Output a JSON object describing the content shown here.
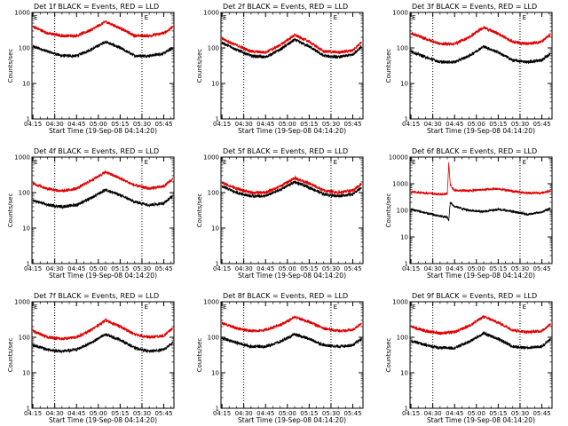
{
  "chart_data": {
    "type": "line",
    "layout": "3x3 grid",
    "y_scale": "log",
    "grid": "off",
    "xlabel": "Start Time (19-Sep-08 04:14:20)",
    "ylabel": "Counts/sec",
    "x_ticks": [
      "04:15",
      "04:30",
      "04:45",
      "05:00",
      "05:15",
      "05:30",
      "05:45"
    ],
    "x_range": [
      "04:14:20",
      "05:52:00"
    ],
    "vlines": [
      "04:30",
      "05:30"
    ],
    "marker_label": "E",
    "marker_times": [
      "04:15",
      "05:31"
    ],
    "colors": {
      "events": "#000000",
      "lld": "#e00000"
    },
    "panels": [
      {
        "title": "Det 1f BLACK = Events, RED = LLD",
        "y_ticks": [
          "1",
          "10",
          "100",
          "1000"
        ],
        "ylim": [
          1,
          1000
        ],
        "series": [
          {
            "key": "events",
            "x": [
              "04:15",
              "04:25",
              "04:35",
              "04:45",
              "04:55",
              "05:05",
              "05:15",
              "05:25",
              "05:35",
              "05:45",
              "05:51"
            ],
            "values": [
              110,
              80,
              60,
              60,
              90,
              150,
              100,
              60,
              60,
              70,
              100
            ]
          },
          {
            "key": "lld",
            "x": [
              "04:15",
              "04:25",
              "04:35",
              "04:45",
              "04:55",
              "05:05",
              "05:15",
              "05:25",
              "05:35",
              "05:45",
              "05:51"
            ],
            "values": [
              400,
              260,
              220,
              220,
              320,
              550,
              360,
              220,
              220,
              260,
              380
            ]
          }
        ]
      },
      {
        "title": "Det 2f BLACK = Events, RED = LLD",
        "y_ticks": [
          "1",
          "10",
          "100",
          "1000"
        ],
        "ylim": [
          1,
          1000
        ],
        "series": [
          {
            "key": "events",
            "x": [
              "04:15",
              "04:25",
              "04:35",
              "04:45",
              "04:55",
              "05:05",
              "05:15",
              "05:25",
              "05:35",
              "05:45",
              "05:51"
            ],
            "values": [
              140,
              90,
              60,
              55,
              90,
              170,
              110,
              60,
              55,
              65,
              110
            ]
          },
          {
            "key": "lld",
            "x": [
              "04:15",
              "04:25",
              "04:35",
              "04:45",
              "04:55",
              "05:05",
              "05:15",
              "05:25",
              "05:35",
              "05:45",
              "05:51"
            ],
            "values": [
              180,
              120,
              80,
              75,
              120,
              230,
              150,
              80,
              75,
              85,
              150
            ]
          }
        ]
      },
      {
        "title": "Det 3f BLACK = Events, RED = LLD",
        "y_ticks": [
          "1",
          "10",
          "100",
          "1000"
        ],
        "ylim": [
          1,
          1000
        ],
        "series": [
          {
            "key": "events",
            "x": [
              "04:15",
              "04:25",
              "04:35",
              "04:45",
              "04:55",
              "05:05",
              "05:15",
              "05:25",
              "05:35",
              "05:45",
              "05:51"
            ],
            "values": [
              80,
              55,
              40,
              40,
              60,
              110,
              75,
              45,
              40,
              45,
              70
            ]
          },
          {
            "key": "lld",
            "x": [
              "04:15",
              "04:25",
              "04:35",
              "04:45",
              "04:55",
              "05:05",
              "05:15",
              "05:25",
              "05:35",
              "05:45",
              "05:51"
            ],
            "values": [
              260,
              180,
              130,
              130,
              200,
              380,
              250,
              150,
              130,
              150,
              240
            ]
          }
        ]
      },
      {
        "title": "Det 4f BLACK = Events, RED = LLD",
        "y_ticks": [
          "1",
          "10",
          "100",
          "1000"
        ],
        "ylim": [
          1,
          1000
        ],
        "series": [
          {
            "key": "events",
            "x": [
              "04:15",
              "04:25",
              "04:35",
              "04:45",
              "04:55",
              "05:05",
              "05:15",
              "05:25",
              "05:35",
              "05:45",
              "05:51"
            ],
            "values": [
              60,
              45,
              40,
              45,
              70,
              120,
              85,
              55,
              45,
              50,
              80
            ]
          },
          {
            "key": "lld",
            "x": [
              "04:15",
              "04:25",
              "04:35",
              "04:45",
              "04:55",
              "05:05",
              "05:15",
              "05:25",
              "05:35",
              "05:45",
              "05:51"
            ],
            "values": [
              180,
              130,
              110,
              130,
              220,
              380,
              250,
              160,
              130,
              150,
              240
            ]
          }
        ]
      },
      {
        "title": "Det 5f BLACK = Events, RED = LLD",
        "y_ticks": [
          "1",
          "10",
          "100",
          "1000"
        ],
        "ylim": [
          1,
          1000
        ],
        "series": [
          {
            "key": "events",
            "x": [
              "04:15",
              "04:25",
              "04:35",
              "04:45",
              "04:55",
              "05:05",
              "05:15",
              "05:25",
              "05:35",
              "05:45",
              "05:51"
            ],
            "values": [
              150,
              100,
              80,
              80,
              120,
              200,
              140,
              90,
              80,
              90,
              140
            ]
          },
          {
            "key": "lld",
            "x": [
              "04:15",
              "04:25",
              "04:35",
              "04:45",
              "04:55",
              "05:05",
              "05:15",
              "05:25",
              "05:35",
              "05:45",
              "05:51"
            ],
            "values": [
              190,
              130,
              100,
              100,
              150,
              260,
              180,
              115,
              100,
              115,
              180
            ]
          }
        ]
      },
      {
        "title": "Det 6f BLACK = Events, RED = LLD",
        "y_ticks": [
          "1",
          "10",
          "100",
          "1000",
          "10000"
        ],
        "ylim": [
          1,
          10000
        ],
        "series": [
          {
            "key": "events",
            "x": [
              "04:15",
              "04:25",
              "04:35",
              "04:40",
              "04:41",
              "04:42",
              "04:45",
              "04:55",
              "05:05",
              "05:15",
              "05:25",
              "05:35",
              "05:45",
              "05:51"
            ],
            "values": [
              110,
              80,
              60,
              55,
              40,
              200,
              140,
              100,
              90,
              110,
              90,
              70,
              85,
              120
            ]
          },
          {
            "key": "lld",
            "x": [
              "04:15",
              "04:25",
              "04:35",
              "04:40",
              "04:41",
              "04:42",
              "04:45",
              "04:55",
              "05:05",
              "05:15",
              "05:25",
              "05:35",
              "05:45",
              "05:51"
            ],
            "values": [
              500,
              450,
              400,
              420,
              6000,
              900,
              550,
              550,
              600,
              650,
              520,
              450,
              450,
              550
            ]
          }
        ]
      },
      {
        "title": "Det 7f BLACK = Events, RED = LLD",
        "y_ticks": [
          "1",
          "10",
          "100",
          "1000"
        ],
        "ylim": [
          1,
          1000
        ],
        "series": [
          {
            "key": "events",
            "x": [
              "04:15",
              "04:25",
              "04:35",
              "04:45",
              "04:55",
              "05:05",
              "05:15",
              "05:25",
              "05:35",
              "05:45",
              "05:51"
            ],
            "values": [
              60,
              45,
              40,
              45,
              70,
              120,
              85,
              50,
              40,
              45,
              70
            ]
          },
          {
            "key": "lld",
            "x": [
              "04:15",
              "04:25",
              "04:35",
              "04:45",
              "04:55",
              "05:05",
              "05:15",
              "05:25",
              "05:35",
              "05:45",
              "05:51"
            ],
            "values": [
              150,
              100,
              90,
              100,
              160,
              300,
              200,
              120,
              100,
              110,
              180
            ]
          }
        ]
      },
      {
        "title": "Det 8f BLACK = Events, RED = LLD",
        "y_ticks": [
          "1",
          "10",
          "100",
          "1000"
        ],
        "ylim": [
          1,
          1000
        ],
        "series": [
          {
            "key": "events",
            "x": [
              "04:15",
              "04:25",
              "04:35",
              "04:45",
              "04:55",
              "05:05",
              "05:15",
              "05:25",
              "05:35",
              "05:45",
              "05:51"
            ],
            "values": [
              95,
              70,
              55,
              55,
              75,
              120,
              90,
              60,
              55,
              60,
              90
            ]
          },
          {
            "key": "lld",
            "x": [
              "04:15",
              "04:25",
              "04:35",
              "04:45",
              "04:55",
              "05:05",
              "05:15",
              "05:25",
              "05:35",
              "05:45",
              "05:51"
            ],
            "values": [
              250,
              180,
              150,
              160,
              220,
              370,
              270,
              180,
              150,
              160,
              250
            ]
          }
        ]
      },
      {
        "title": "Det 9f BLACK = Events, RED = LLD",
        "y_ticks": [
          "1",
          "10",
          "100",
          "1000"
        ],
        "ylim": [
          1,
          1000
        ],
        "series": [
          {
            "key": "events",
            "x": [
              "04:15",
              "04:25",
              "04:35",
              "04:45",
              "04:55",
              "05:05",
              "05:15",
              "05:25",
              "05:35",
              "05:45",
              "05:51"
            ],
            "values": [
              80,
              60,
              50,
              50,
              75,
              130,
              90,
              55,
              50,
              55,
              90
            ]
          },
          {
            "key": "lld",
            "x": [
              "04:15",
              "04:25",
              "04:35",
              "04:45",
              "04:55",
              "05:05",
              "05:15",
              "05:25",
              "05:35",
              "05:45",
              "05:51"
            ],
            "values": [
              200,
              150,
              130,
              140,
              210,
              380,
              260,
              160,
              140,
              150,
              240
            ]
          }
        ]
      }
    ]
  }
}
